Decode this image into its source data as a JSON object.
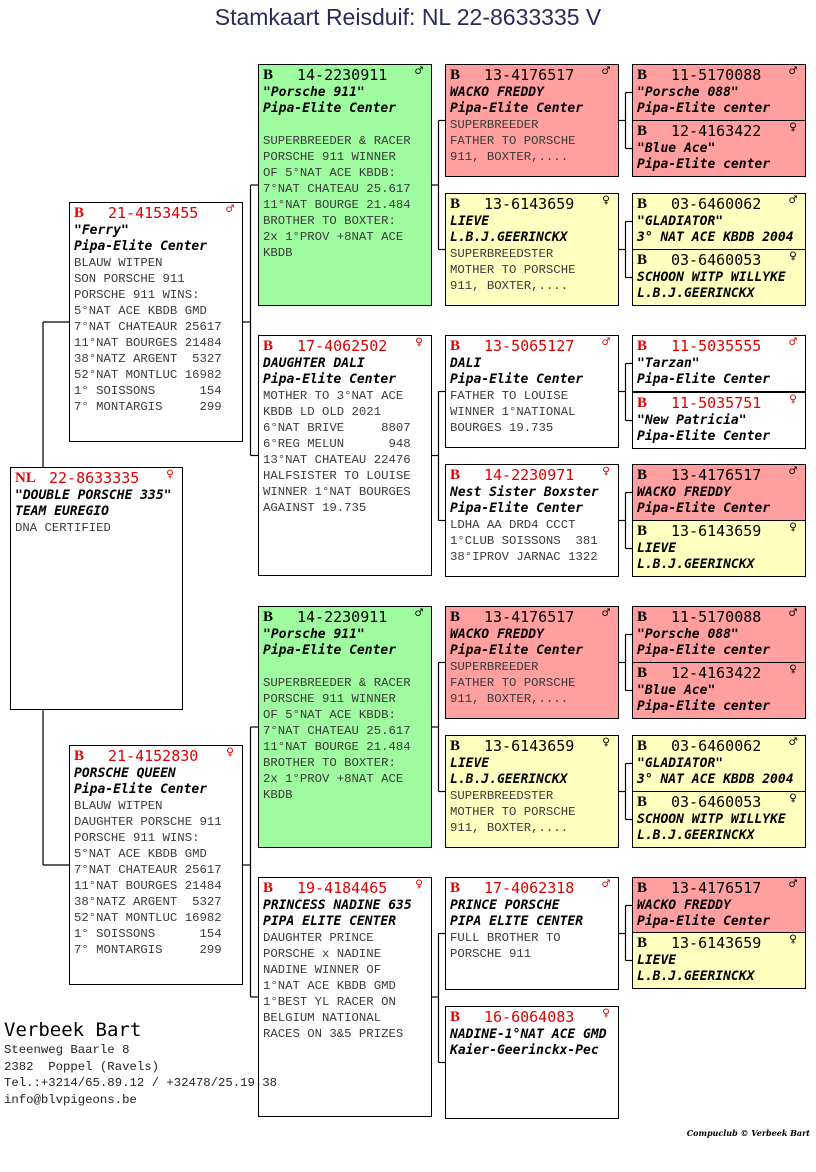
{
  "title": "Stamkaart Reisduif: NL  22-8633335 V",
  "palette": {
    "white": "#ffffff",
    "green": "#9ffb9f",
    "red": "#ff9f9f",
    "yellow": "#ffffc0",
    "ring_red": "#e00000",
    "ring_black": "#000000"
  },
  "sex_symbols": {
    "male": "♂",
    "female": "♀"
  },
  "pedigree": [
    {
      "country": "NL",
      "ring": "22-8633335",
      "sex": "female",
      "color": "white",
      "names": [
        "\"DOUBLE PORSCHE 335\"",
        "TEAM EUREGIO"
      ],
      "lines": [
        "DNA CERTIFIED"
      ]
    },
    {
      "country": "B",
      "ring": "21-4153455",
      "sex": "male",
      "color": "white",
      "names": [
        "\"Ferry\"",
        "Pipa-Elite Center"
      ],
      "lines": [
        "BLAUW WITPEN",
        "SON PORSCHE 911",
        "PORSCHE 911 WINS:",
        "5°NAT ACE KBDB GMD",
        "7°NAT CHATEAUR 25617",
        "11°NAT BOURGES 21484",
        "38°NATZ ARGENT  5327",
        "52°NAT MONTLUC 16982",
        "1° SOISSONS      154",
        "7° MONTARGIS     299"
      ]
    },
    {
      "country": "B",
      "ring": "21-4152830",
      "sex": "female",
      "color": "white",
      "names": [
        "PORSCHE QUEEN",
        "Pipa-Elite Center"
      ],
      "lines": [
        "BLAUW WITPEN",
        "DAUGHTER PORSCHE 911",
        "PORSCHE 911 WINS:",
        "5°NAT ACE KBDB GMD",
        "7°NAT CHATEAUR 25617",
        "11°NAT BOURGES 21484",
        "38°NATZ ARGENT  5327",
        "52°NAT MONTLUC 16982",
        "1° SOISSONS      154",
        "7° MONTARGIS     299"
      ]
    },
    {
      "country": "B",
      "ring": "14-2230911",
      "sex": "male",
      "color": "green",
      "names": [
        "\"Porsche 911\"",
        "Pipa-Elite Center"
      ],
      "lines": [
        "",
        "SUPERBREEDER & RACER",
        "PORSCHE 911 WINNER",
        "OF 5°NAT ACE KBDB:",
        "7°NAT CHATEAU 25.617",
        "11°NAT BOURGE 21.484",
        "BROTHER TO BOXTER:",
        "2x 1°PROV +8NAT ACE",
        "KBDB"
      ]
    },
    {
      "country": "B",
      "ring": "17-4062502",
      "sex": "female",
      "color": "white",
      "names": [
        "DAUGHTER DALI",
        "Pipa-Elite Center"
      ],
      "lines": [
        "MOTHER TO 3°NAT ACE",
        "KBDB LD OLD 2021",
        "6°NAT BRIVE     8807",
        "6°REG MELUN      948",
        "13°NAT CHATEAU 22476",
        "HALFSISTER TO LOUISE",
        "WINNER 1°NAT BOURGES",
        "AGAINST 19.735"
      ]
    },
    {
      "country": "B",
      "ring": "14-2230911",
      "sex": "male",
      "color": "green",
      "names": [
        "\"Porsche 911\"",
        "Pipa-Elite Center"
      ],
      "lines": [
        "",
        "SUPERBREEDER & RACER",
        "PORSCHE 911 WINNER",
        "OF 5°NAT ACE KBDB:",
        "7°NAT CHATEAU 25.617",
        "11°NAT BOURGE 21.484",
        "BROTHER TO BOXTER:",
        "2x 1°PROV +8NAT ACE",
        "KBDB"
      ]
    },
    {
      "country": "B",
      "ring": "19-4184465",
      "sex": "female",
      "color": "white",
      "names": [
        "PRINCESS NADINE 635",
        "PIPA ELITE CENTER"
      ],
      "lines": [
        "DAUGHTER PRINCE",
        "PORSCHE x NADINE",
        "NADINE WINNER OF",
        "1°NAT ACE KBDB GMD",
        "1°BEST YL RACER ON",
        "BELGIUM NATIONAL",
        "RACES ON 3&5 PRIZES"
      ]
    },
    {
      "country": "B",
      "ring": "13-4176517",
      "sex": "male",
      "color": "red",
      "names": [
        "WACKO FREDDY",
        "Pipa-Elite Center"
      ],
      "lines": [
        "SUPERBREEDER",
        "FATHER TO PORSCHE",
        "911, BOXTER,...."
      ]
    },
    {
      "country": "B",
      "ring": "13-6143659",
      "sex": "female",
      "color": "yellow",
      "names": [
        "LIEVE",
        "L.B.J.GEERINCKX"
      ],
      "lines": [
        "SUPERBREEDSTER",
        "MOTHER TO PORSCHE",
        "911, BOXTER,...."
      ]
    },
    {
      "country": "B",
      "ring": "13-5065127",
      "sex": "male",
      "color": "white",
      "names": [
        "DALI",
        "Pipa-Elite Center"
      ],
      "lines": [
        "FATHER TO LOUISE",
        "WINNER 1°NATIONAL",
        "BOURGES 19.735"
      ]
    },
    {
      "country": "B",
      "ring": "14-2230971",
      "sex": "female",
      "color": "white",
      "names": [
        "Nest Sister Boxster",
        "Pipa-Elite Center"
      ],
      "lines": [
        "LDHA AA DRD4 CCCT",
        "1°CLUB SOISSONS  381",
        "38°IPROV JARNAC 1322"
      ]
    },
    {
      "country": "B",
      "ring": "13-4176517",
      "sex": "male",
      "color": "red",
      "names": [
        "WACKO FREDDY",
        "Pipa-Elite Center"
      ],
      "lines": [
        "SUPERBREEDER",
        "FATHER TO PORSCHE",
        "911, BOXTER,...."
      ]
    },
    {
      "country": "B",
      "ring": "13-6143659",
      "sex": "female",
      "color": "yellow",
      "names": [
        "LIEVE",
        "L.B.J.GEERINCKX"
      ],
      "lines": [
        "SUPERBREEDSTER",
        "MOTHER TO PORSCHE",
        "911, BOXTER,...."
      ]
    },
    {
      "country": "B",
      "ring": "17-4062318",
      "sex": "male",
      "color": "white",
      "names": [
        "PRINCE PORSCHE",
        "PIPA ELITE CENTER"
      ],
      "lines": [
        "FULL BROTHER TO",
        "PORSCHE 911"
      ]
    },
    {
      "country": "B",
      "ring": "16-6064083",
      "sex": "female",
      "color": "white",
      "names": [
        "NADINE-1°NAT ACE GMD",
        "Kaier-Geerinckx-Pec"
      ],
      "lines": []
    },
    {
      "country": "B",
      "ring": "11-5170088",
      "sex": "male",
      "color": "red",
      "names": [
        "\"Porsche 088\"",
        "Pipa-Elite center"
      ],
      "lines": []
    },
    {
      "country": "B",
      "ring": "12-4163422",
      "sex": "female",
      "color": "red",
      "names": [
        "\"Blue Ace\"",
        "Pipa-Elite center"
      ],
      "lines": []
    },
    {
      "country": "B",
      "ring": "03-6460062",
      "sex": "male",
      "color": "yellow",
      "names": [
        "\"GLADIATOR\"",
        "3° NAT ACE KBDB 2004"
      ],
      "lines": []
    },
    {
      "country": "B",
      "ring": "03-6460053",
      "sex": "female",
      "color": "yellow",
      "names": [
        "SCHOON WITP WILLYKE",
        "L.B.J.GEERINCKX"
      ],
      "lines": []
    },
    {
      "country": "B",
      "ring": "11-5035555",
      "sex": "male",
      "color": "white",
      "names": [
        "\"Tarzan\"",
        "Pipa-Elite Center"
      ],
      "lines": []
    },
    {
      "country": "B",
      "ring": "11-5035751",
      "sex": "female",
      "color": "white",
      "names": [
        "\"New Patricia\"",
        "Pipa-Elite Center"
      ],
      "lines": []
    },
    {
      "country": "B",
      "ring": "13-4176517",
      "sex": "male",
      "color": "red",
      "names": [
        "WACKO FREDDY",
        "Pipa-Elite Center"
      ],
      "lines": []
    },
    {
      "country": "B",
      "ring": "13-6143659",
      "sex": "female",
      "color": "yellow",
      "names": [
        "LIEVE",
        "L.B.J.GEERINCKX"
      ],
      "lines": []
    },
    {
      "country": "B",
      "ring": "11-5170088",
      "sex": "male",
      "color": "red",
      "names": [
        "\"Porsche 088\"",
        "Pipa-Elite center"
      ],
      "lines": []
    },
    {
      "country": "B",
      "ring": "12-4163422",
      "sex": "female",
      "color": "red",
      "names": [
        "\"Blue Ace\"",
        "Pipa-Elite center"
      ],
      "lines": []
    },
    {
      "country": "B",
      "ring": "03-6460062",
      "sex": "male",
      "color": "yellow",
      "names": [
        "\"GLADIATOR\"",
        "3° NAT ACE KBDB 2004"
      ],
      "lines": []
    },
    {
      "country": "B",
      "ring": "03-6460053",
      "sex": "female",
      "color": "yellow",
      "names": [
        "SCHOON WITP WILLYKE",
        "L.B.J.GEERINCKX"
      ],
      "lines": []
    },
    {
      "country": "B",
      "ring": "13-4176517",
      "sex": "male",
      "color": "red",
      "names": [
        "WACKO FREDDY",
        "Pipa-Elite Center"
      ],
      "lines": []
    },
    {
      "country": "B",
      "ring": "13-6143659",
      "sex": "female",
      "color": "yellow",
      "names": [
        "LIEVE",
        "L.B.J.GEERINCKX"
      ],
      "lines": []
    }
  ],
  "owner": {
    "name": "Verbeek Bart",
    "lines": [
      "Steenweg Baarle 8",
      "2382  Poppel (Ravels)",
      "Tel.:+3214/65.89.12 / +32478/25.19.38",
      "info@blvpigeons.be"
    ]
  },
  "credit": "Compuclub © Verbeek Bart"
}
